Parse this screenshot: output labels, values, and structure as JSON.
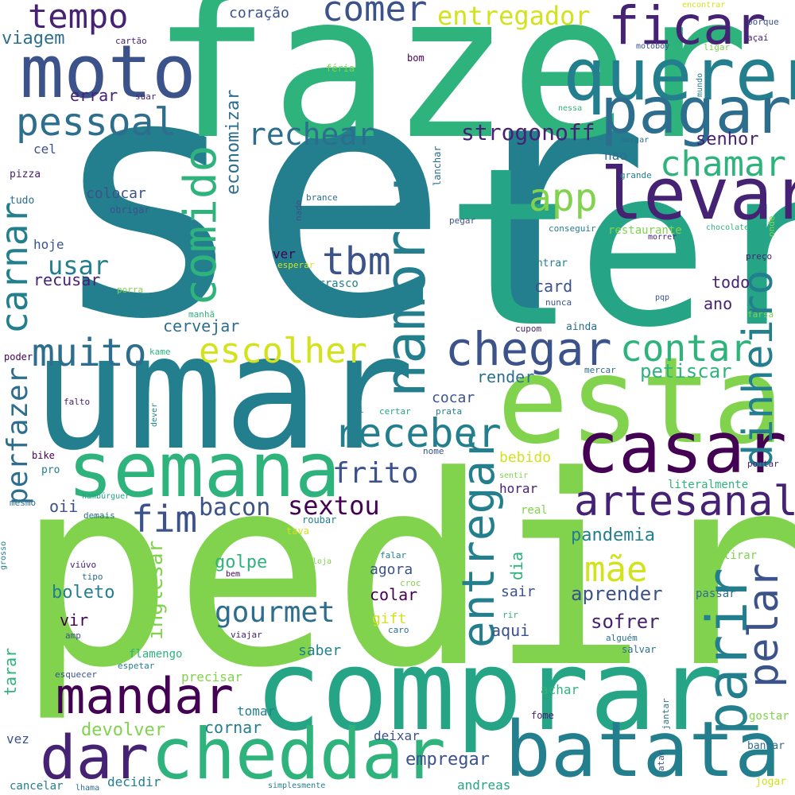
{
  "words": {
    "ser": "ser",
    "fazer": "fazer",
    "ter": "ter",
    "pedir": "pedir",
    "umar": "umar",
    "comprar": "comprar",
    "estar": "estar",
    "moto": "moto",
    "querer": "querer",
    "pagar": "pagar",
    "levar": "levar",
    "semana": "semana",
    "casar": "casar",
    "batata": "batata",
    "cheddar": "cheddar",
    "mandar": "mandar",
    "dar": "dar",
    "namorar": "namorar",
    "chegar": "chegar",
    "muito": "muito",
    "artesanal": "artesanal",
    "receber": "receber",
    "comido": "comido",
    "tempo": "tempo",
    "ficar": "ficar",
    "comer": "comer",
    "pessoal": "pessoal",
    "app": "app",
    "tbm": "tbm",
    "contar": "contar",
    "escolher": "escolher",
    "dinheiro": "dinheiro",
    "parir": "parir",
    "pelar": "pelar",
    "entregar": "entregar",
    "carnar": "carnar",
    "chamar": "chamar",
    "rechear": "rechear",
    "fim": "fim",
    "gourmet": "gourmet",
    "mae": "mãe",
    "frito": "frito",
    "sextou": "sextou",
    "bacon": "bacon",
    "entregador": "entregador",
    "strogonoff": "strogonoff",
    "perfazer": "perfazer",
    "usar": "usar",
    "viagem": "viagem",
    "errar": "errar",
    "coracao": "coração",
    "economizar": "economizar",
    "senhor": "senhor",
    "petiscar": "petiscar",
    "cervejar": "cervejar",
    "recusar": "recusar",
    "colocar": "colocar",
    "render": "render",
    "cocar": "cocar",
    "pandemia": "pandemia",
    "aprender": "aprender",
    "sofrer": "sofrer",
    "inglesar": "inglesar",
    "golpe": "golpe",
    "boleto": "boleto",
    "devolver": "devolver",
    "cornar": "cornar",
    "empregar": "empregar",
    "card": "card",
    "todo": "todo",
    "ano": "ano",
    "bebido": "bebido",
    "colar": "colar",
    "agora": "agora",
    "sair": "sair",
    "aqui": "aqui",
    "vir": "vir",
    "oii": "oii",
    "cel": "cel",
    "hoje": "hoje",
    "horar": "horar",
    "dia": "dia",
    "saber": "saber",
    "churrasco": "churrasco",
    "nao": "nao",
    "ver": "ver",
    "restaurante": "restaurante",
    "tarar": "tarar",
    "precisar": "precisar",
    "tomar": "tomar",
    "deixar": "deixar",
    "andreas": "andreas",
    "decidir": "decidir",
    "cancelar": "cancelar",
    "vez": "vez",
    "achar": "achar",
    "flamengo": "flamengo",
    "gift": "gift",
    "real": "real",
    "literalmente": "literalmente",
    "tirar": "tirar",
    "passar": "passar",
    "salvar": "salvar",
    "gostar": "gostar",
    "banhar": "banhar",
    "jogar": "jogar",
    "jantar": "jantar",
    "atar": "atar",
    "fome": "fome",
    "tal": "tal",
    "feria": "féria",
    "bom": "bom",
    "cartao": "cartão",
    "suar": "suar",
    "pizza": "pizza",
    "tudo": "tudo",
    "obrigar": "obrigar",
    "nado": "nado",
    "brance": "brance",
    "lanchar": "lanchar",
    "pegar": "pegar",
    "conseguir": "conseguir",
    "esperar": "esperar",
    "porra": "porra",
    "manha": "manhã",
    "poder": "poder",
    "kame": "kame",
    "falto": "falto",
    "dever": "dever",
    "sal": "sal",
    "certar": "certar",
    "prata": "prata",
    "nome": "nome",
    "bike": "bike",
    "pro": "pro",
    "mesmo": "mesmo",
    "hamburguer": "hambúrguer",
    "demais": "demais",
    "roubar": "roubar",
    "tava": "tava",
    "grosso": "grosso",
    "viuvo": "viúvo",
    "tipo": "tipo",
    "bem": "bem",
    "amp": "amp",
    "viajar": "viajar",
    "caro": "caro",
    "esquecer": "esquecer",
    "espetar": "espetar",
    "croc": "croc",
    "loja": "loja",
    "falar": "falar",
    "rir": "rir",
    "alguem": "alguém",
    "sentir": "sentir",
    "pontar": "pontar",
    "mercar": "mercar",
    "farsa": "farsa",
    "cupom": "cupom",
    "ainda": "ainda",
    "nunca": "nunca",
    "pqp": "pqp",
    "entrar": "entrar",
    "preco": "preço",
    "morrer": "morrer",
    "chocolate": "chocolate",
    "onde": "onde",
    "grande": "grande",
    "amigar": "amigar",
    "motoboy": "motoboy",
    "mundo": "mundo",
    "ligar": "ligar",
    "porque": "porque",
    "acai": "açaí",
    "encontrar": "encontrar",
    "nessa": "nessa",
    "lhama": "lhama",
    "simplesmente": "simplesmente"
  },
  "colors": {
    "teal": "#237f8e",
    "green": "#2fb37c",
    "lime": "#81d34d",
    "purple": "#462274",
    "indigo": "#3b528b",
    "blue": "#2d6e8e",
    "yellow": "#d2e21b",
    "seafoam": "#25a585",
    "darkpurple": "#440154"
  }
}
